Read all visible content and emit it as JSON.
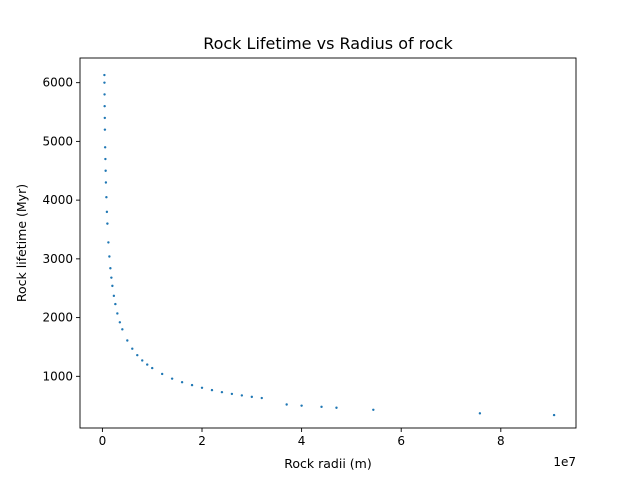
{
  "chart_data": {
    "type": "scatter",
    "title": "Rock Lifetime vs Radius of rock",
    "xlabel": "Rock radii (m)",
    "ylabel": "Rock lifetime (Myr)",
    "x_offset_label": "1e7",
    "xlim": [
      -0.45,
      9.51
    ],
    "ylim": [
      120,
      6420
    ],
    "x_ticks": [
      0,
      2,
      4,
      6,
      8
    ],
    "x_tick_labels": [
      "0",
      "2",
      "4",
      "6",
      "8"
    ],
    "y_ticks": [
      1000,
      2000,
      3000,
      4000,
      5000,
      6000
    ],
    "y_tick_labels": [
      "1000",
      "2000",
      "3000",
      "4000",
      "5000",
      "6000"
    ],
    "grid": false,
    "marker_color": "#1f77b4",
    "series": [
      {
        "x": [
          0.04,
          0.041,
          0.043,
          0.045,
          0.048,
          0.05,
          0.055,
          0.06,
          0.065,
          0.07,
          0.08,
          0.09,
          0.1,
          0.12,
          0.14,
          0.16,
          0.18,
          0.2,
          0.23,
          0.26,
          0.3,
          0.35,
          0.4,
          0.5,
          0.6,
          0.7,
          0.8,
          0.9,
          1.0,
          1.2,
          1.4,
          1.6,
          1.8,
          2.0,
          2.2,
          2.4,
          2.6,
          2.8,
          3.0,
          3.2,
          3.7,
          4.0,
          4.4,
          4.7,
          5.44,
          7.58,
          9.07
        ],
        "y": [
          6130,
          6000,
          5800,
          5600,
          5400,
          5200,
          4900,
          4700,
          4500,
          4300,
          4050,
          3800,
          3600,
          3280,
          3040,
          2840,
          2680,
          2540,
          2370,
          2230,
          2070,
          1920,
          1800,
          1610,
          1470,
          1360,
          1270,
          1200,
          1140,
          1040,
          960,
          900,
          850,
          805,
          765,
          730,
          700,
          675,
          650,
          630,
          520,
          500,
          480,
          465,
          430,
          370,
          340
        ]
      }
    ]
  }
}
